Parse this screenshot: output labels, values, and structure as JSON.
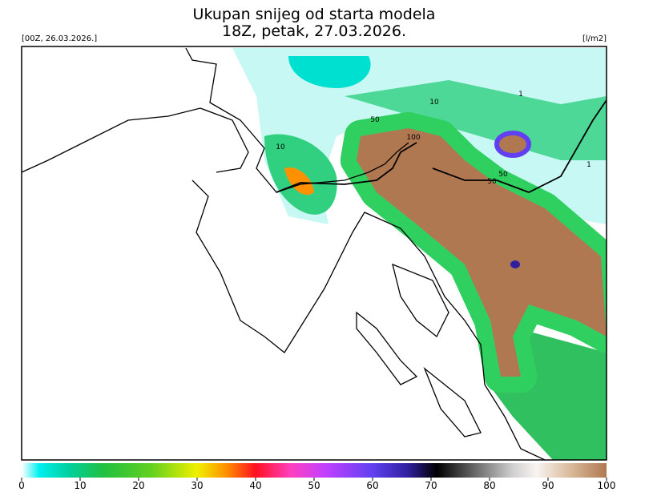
{
  "header": {
    "title": "Ukupan snijeg od starta modela",
    "subtitle": "18Z, petak, 27.03.2026.",
    "run_label": "[00Z, 26.03.2026.]",
    "unit_label": "[l/m2]"
  },
  "contour_labels": [
    "100",
    "50",
    "50",
    "50",
    "10",
    "10",
    "1",
    "1"
  ],
  "colorbar": {
    "range": [
      0,
      100
    ],
    "ticks": [
      0,
      10,
      20,
      30,
      40,
      50,
      60,
      70,
      80,
      90,
      100
    ],
    "stops": [
      {
        "value": 0,
        "color": "#ffffff"
      },
      {
        "value": 3,
        "color": "#00f0f0"
      },
      {
        "value": 8,
        "color": "#00d0a0"
      },
      {
        "value": 14,
        "color": "#20c040"
      },
      {
        "value": 22,
        "color": "#60d020"
      },
      {
        "value": 30,
        "color": "#f0f000"
      },
      {
        "value": 35,
        "color": "#ff9000"
      },
      {
        "value": 40,
        "color": "#ff1020"
      },
      {
        "value": 46,
        "color": "#ff40c0"
      },
      {
        "value": 52,
        "color": "#c040ff"
      },
      {
        "value": 60,
        "color": "#6040f0"
      },
      {
        "value": 66,
        "color": "#3020a0"
      },
      {
        "value": 71,
        "color": "#000000"
      },
      {
        "value": 78,
        "color": "#707070"
      },
      {
        "value": 84,
        "color": "#d0d0d0"
      },
      {
        "value": 88,
        "color": "#f8f4f0"
      },
      {
        "value": 94,
        "color": "#d8b898"
      },
      {
        "value": 100,
        "color": "#b07850"
      }
    ]
  }
}
